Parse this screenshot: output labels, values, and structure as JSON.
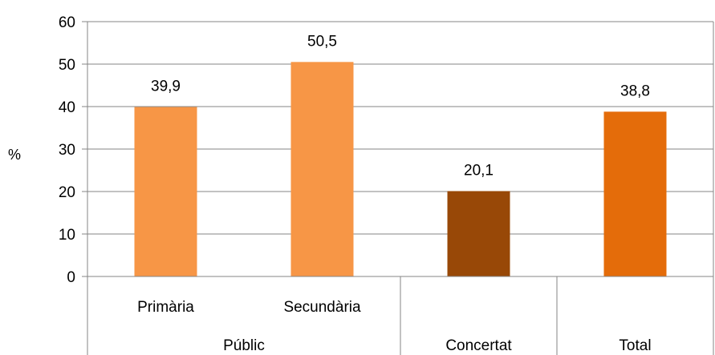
{
  "chart_data": {
    "type": "bar",
    "title": "",
    "xlabel": "",
    "ylabel": "%",
    "ylim": [
      0,
      60
    ],
    "yticks": [
      "0",
      "10",
      "20",
      "30",
      "40",
      "50",
      "60"
    ],
    "grid": true,
    "legend": "none",
    "categories": [
      {
        "label": "Primària",
        "group": "Públic",
        "value": 39.9,
        "value_label": "39,9",
        "color": "#F79646"
      },
      {
        "label": "Secundària",
        "group": "Públic",
        "value": 50.5,
        "value_label": "50,5",
        "color": "#F79646"
      },
      {
        "label": "",
        "group": "Concertat",
        "value": 20.1,
        "value_label": "20,1",
        "color": "#984807"
      },
      {
        "label": "",
        "group": "Total",
        "value": 38.8,
        "value_label": "38,8",
        "color": "#E46C0A"
      }
    ],
    "groups": [
      {
        "label": "Públic"
      },
      {
        "label": "Concertat"
      },
      {
        "label": "Total"
      }
    ]
  }
}
